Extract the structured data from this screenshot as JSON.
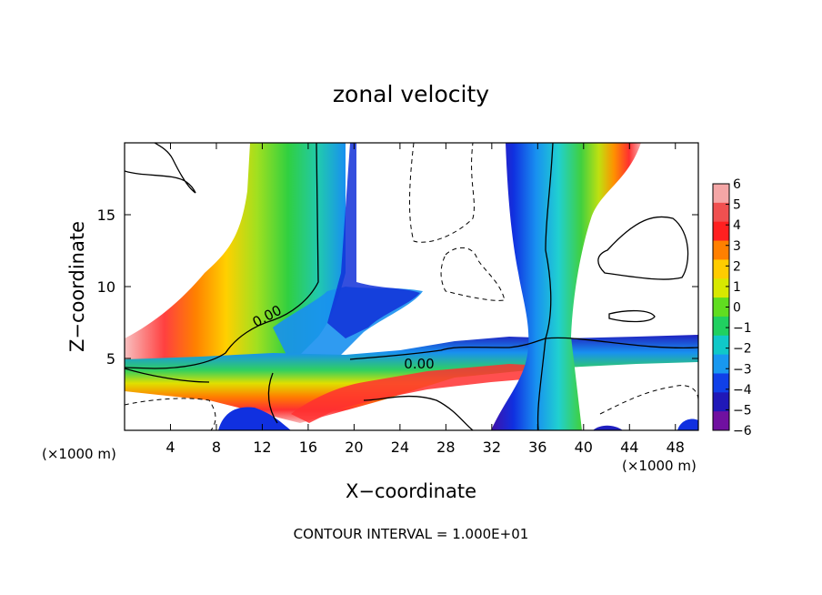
{
  "chart_data": {
    "type": "heatmap",
    "title": "zonal velocity",
    "xlabel": "X−coordinate",
    "ylabel": "Z−coordinate",
    "x_unit": "(×1000 m)",
    "y_unit": "(×1000 m)",
    "xlim": [
      0,
      50
    ],
    "ylim": [
      0,
      20
    ],
    "x_ticks": [
      4,
      8,
      12,
      16,
      20,
      24,
      28,
      32,
      36,
      40,
      44,
      48
    ],
    "y_ticks": [
      5,
      10,
      15
    ],
    "colorbar": {
      "levels": [
        6,
        5,
        4,
        3,
        2,
        1,
        0,
        -1,
        -2,
        -3,
        -4,
        -5,
        -6
      ],
      "labels": [
        "6",
        "5",
        "4",
        "3",
        "2",
        "1",
        "0",
        "−1",
        "−2",
        "−3",
        "−4",
        "−5",
        "−6"
      ],
      "colors": [
        "#f4a6a6",
        "#f05050",
        "#ff2020",
        "#ff8000",
        "#ffcc00",
        "#d8e800",
        "#60dd20",
        "#20d060",
        "#10c8c8",
        "#1898f0",
        "#1040e8",
        "#2018b8",
        "#7010a0"
      ]
    },
    "contour_labels": [
      {
        "text": "0.00",
        "x": 14,
        "z": 7.5
      },
      {
        "text": "0.00",
        "x": 25.5,
        "z": 4.7
      }
    ],
    "footnote": "CONTOUR INTERVAL = 1.000E+01"
  }
}
